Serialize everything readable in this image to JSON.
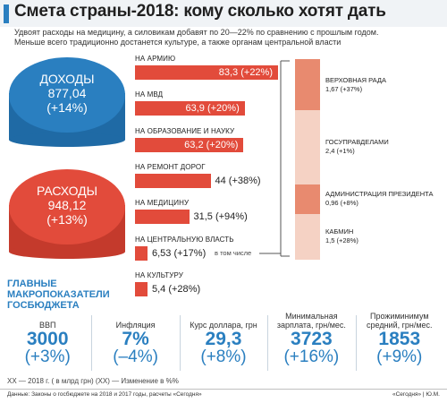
{
  "header": {
    "title": "Смета страны-2018: кому сколько хотят дать",
    "subtitle_1": "Удвоят расходы на медицину, а силовикам добавят по 20—22% по сравнению с прошлым годом.",
    "subtitle_2": "Меньше всего традиционно достанется культуре, а также органам центральной власти"
  },
  "coins": {
    "income": {
      "label": "ДОХОДЫ",
      "value": "877,04",
      "change": "(+14%)",
      "color": "#2a7fc0"
    },
    "expense": {
      "label": "РАСХОДЫ",
      "value": "948,12",
      "change": "(+13%)",
      "color": "#e24b3b"
    }
  },
  "chart_data": {
    "type": "bar",
    "orientation": "horizontal",
    "unit": "млрд грн",
    "categories": [
      "НА АРМИЮ",
      "НА МВД",
      "НА ОБРАЗОВАНИЕ И НАУКУ",
      "НА РЕМОНТ ДОРОГ",
      "НА МЕДИЦИНУ",
      "НА ЦЕНТРАЛЬНУЮ ВЛАСТЬ",
      "НА КУЛЬТУРУ"
    ],
    "values": [
      83.3,
      63.9,
      63.2,
      44,
      31.5,
      6.53,
      5.4
    ],
    "value_labels": [
      "83,3 (+22%)",
      "63,9 (+20%)",
      "63,2 (+20%)",
      "44 (+38%)",
      "31,5 (+94%)",
      "6,53 (+17%)",
      "5,4 (+28%)"
    ],
    "bar_color": "#e24b3b",
    "breakdown_connector": "в том числе",
    "breakdown": {
      "type": "stacked-bar",
      "items": [
        {
          "label": "ВЕРХОВНАЯ РАДА",
          "value": 1.67,
          "value_label": "1,67 (+37%)",
          "color": "#e88a6f"
        },
        {
          "label": "ГОСУПРАВДЕЛАМИ",
          "value": 2.4,
          "value_label": "2,4 (+1%)",
          "color": "#f5d2c4"
        },
        {
          "label": "АДМИНИСТРАЦИЯ ПРЕЗИДЕНТА",
          "value": 0.96,
          "value_label": "0,96 (+8%)",
          "color": "#e88a6f"
        },
        {
          "label": "КАБМИН",
          "value": 1.5,
          "value_label": "1,5 (+28%)",
          "color": "#f5d2c4"
        }
      ]
    }
  },
  "macro": {
    "title_1": "ГЛАВНЫЕ",
    "title_2": "МАКРОПОКАЗАТЕЛИ",
    "title_3": "ГОСБЮДЖЕТА",
    "items": [
      {
        "label_1": "ВВП",
        "label_2": "",
        "value": "3000",
        "change": "(+3%)"
      },
      {
        "label_1": "Инфляция",
        "label_2": "",
        "value": "7%",
        "change": "(–4%)"
      },
      {
        "label_1": "Курс доллара, грн",
        "label_2": "",
        "value": "29,3",
        "change": "(+8%)"
      },
      {
        "label_1": "Минимальная",
        "label_2": "зарплата, грн/мес.",
        "value": "3723",
        "change": "(+16%)"
      },
      {
        "label_1": "Прожиминимум",
        "label_2": "средний, грн/мес.",
        "value": "1853",
        "change": "(+9%)"
      }
    ]
  },
  "footer": {
    "legend": "XX — 2018 г. ( в млрд грн)      (XX) — Изменение в %%",
    "source": "Данные: Законы о госбюджете на 2018 и 2017 годы, расчеты «Сегодня»",
    "credit": "«Сегодня» | Ю.М."
  }
}
